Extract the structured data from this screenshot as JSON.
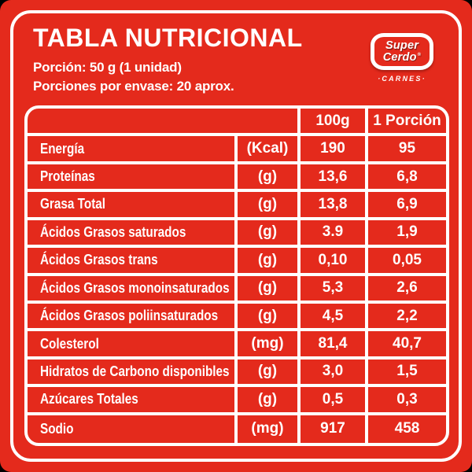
{
  "colors": {
    "background_red": "#E42A1C",
    "border_white": "#FFFFFF",
    "logo_text_shadow_red": "#8E1D12",
    "page_corner_background": "#000000"
  },
  "header": {
    "title": "TABLA NUTRICIONAL",
    "portion_line": "Porción: 50 g (1 unidad)",
    "servings_line": "Porciones por envase: 20 aprox."
  },
  "logo": {
    "brand_line1": "Super",
    "brand_line2": "Cerdo",
    "registered_mark": "®",
    "subtitle": "·CARNES·"
  },
  "table": {
    "column_headers": {
      "per_100g": "100g",
      "per_portion": "1 Porción"
    },
    "rows": [
      {
        "name": "Energía",
        "unit": "(Kcal)",
        "per_100g": "190",
        "per_portion": "95"
      },
      {
        "name": "Proteínas",
        "unit": "(g)",
        "per_100g": "13,6",
        "per_portion": "6,8"
      },
      {
        "name": "Grasa Total",
        "unit": "(g)",
        "per_100g": "13,8",
        "per_portion": "6,9"
      },
      {
        "name": "Ácidos Grasos saturados",
        "unit": "(g)",
        "per_100g": "3.9",
        "per_portion": "1,9"
      },
      {
        "name": "Ácidos Grasos trans",
        "unit": "(g)",
        "per_100g": "0,10",
        "per_portion": "0,05"
      },
      {
        "name": "Ácidos Grasos monoinsaturados",
        "unit": "(g)",
        "per_100g": "5,3",
        "per_portion": "2,6"
      },
      {
        "name": "Ácidos Grasos poliinsaturados",
        "unit": "(g)",
        "per_100g": "4,5",
        "per_portion": "2,2"
      },
      {
        "name": "Colesterol",
        "unit": "(mg)",
        "per_100g": "81,4",
        "per_portion": "40,7"
      },
      {
        "name": "Hidratos de Carbono disponibles",
        "unit": "(g)",
        "per_100g": "3,0",
        "per_portion": "1,5"
      },
      {
        "name": "Azúcares Totales",
        "unit": "(g)",
        "per_100g": "0,5",
        "per_portion": "0,3"
      },
      {
        "name": "Sodio",
        "unit": "(mg)",
        "per_100g": "917",
        "per_portion": "458"
      }
    ]
  }
}
